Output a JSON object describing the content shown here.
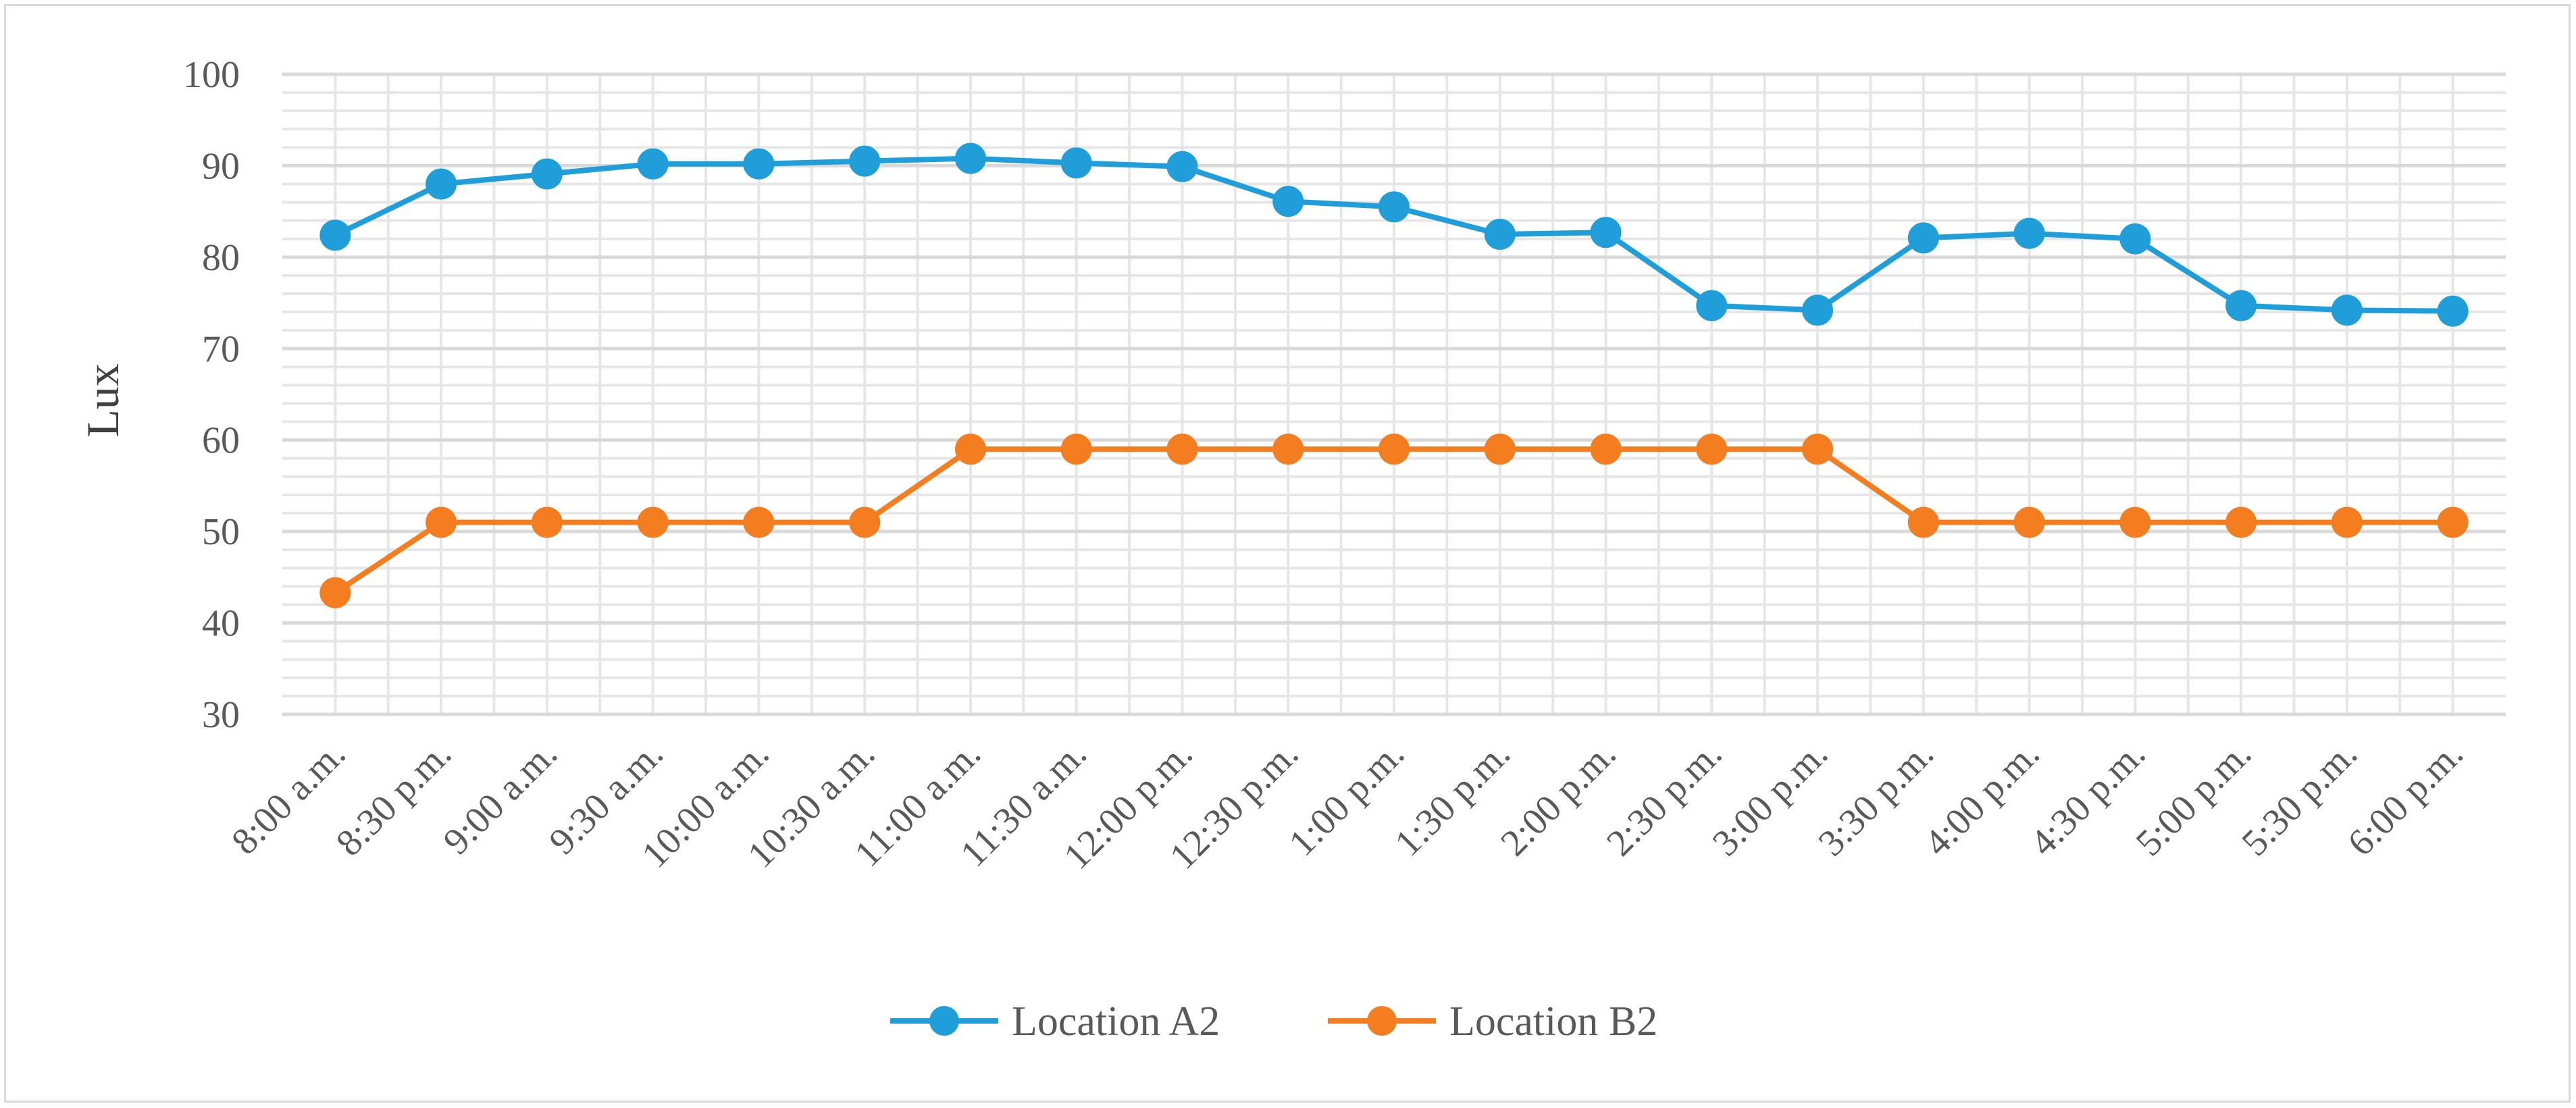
{
  "chart_data": {
    "type": "line",
    "title": "",
    "xlabel": "",
    "ylabel": "Lux",
    "ylim": [
      30,
      100
    ],
    "ytick_step": 10,
    "minor_grid_step": 2,
    "grid": true,
    "legend_position": "bottom",
    "categories": [
      "8:00 a.m.",
      "8:30 p.m.",
      "9:00 a.m.",
      "9:30 a.m.",
      "10:00 a.m.",
      "10:30 a.m.",
      "11:00 a.m.",
      "11:30 a.m.",
      "12:00 p.m.",
      "12:30 p.m.",
      "1:00 p.m.",
      "1:30 p.m.",
      "2:00 p.m.",
      "2:30 p.m.",
      "3:00 p.m.",
      "3:30 p.m.",
      "4:00 p.m.",
      "4:30 p.m.",
      "5:00 p.m.",
      "5:30 p.m.",
      "6:00 p.m."
    ],
    "series": [
      {
        "name": "Location A2",
        "color": "#1f9ed9",
        "values": [
          82.4,
          88.0,
          89.1,
          90.2,
          90.2,
          90.5,
          90.8,
          90.3,
          89.9,
          86.1,
          85.5,
          82.5,
          82.7,
          74.7,
          74.2,
          82.1,
          82.6,
          82.0,
          74.7,
          74.2,
          74.1
        ]
      },
      {
        "name": "Location B2",
        "color": "#f47d20",
        "values": [
          43.3,
          51.0,
          51.0,
          51.0,
          51.0,
          51.0,
          59.0,
          59.0,
          59.0,
          59.0,
          59.0,
          59.0,
          59.0,
          59.0,
          59.0,
          51.0,
          51.0,
          51.0,
          51.0,
          51.0,
          51.0
        ]
      }
    ]
  }
}
